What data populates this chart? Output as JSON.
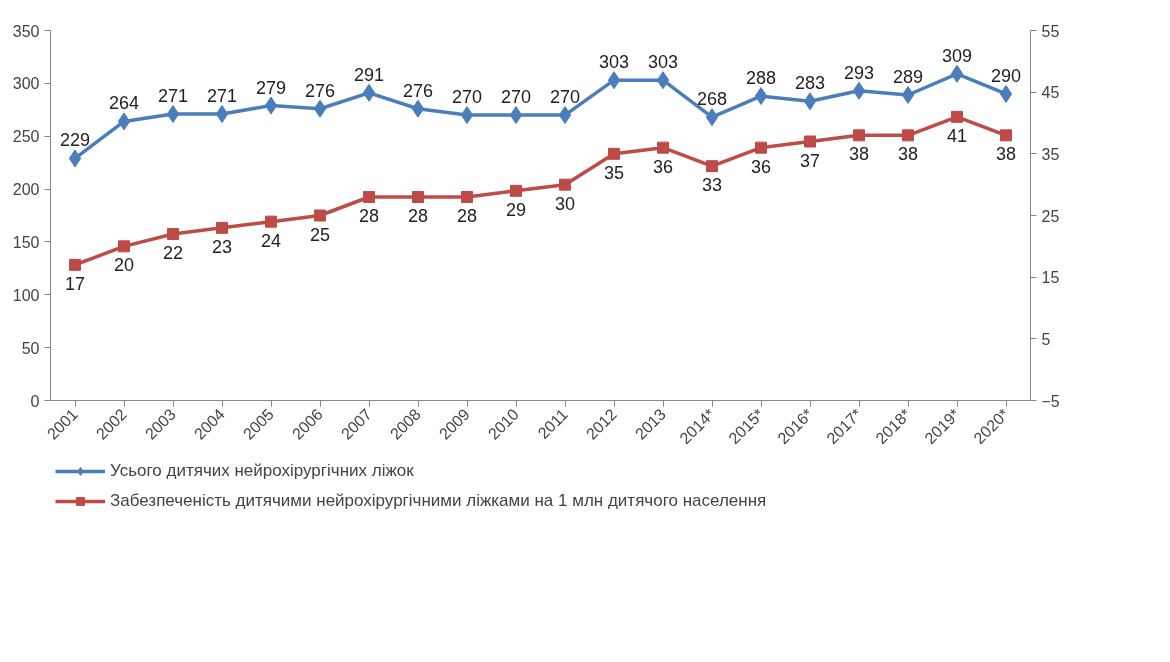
{
  "chart_data": {
    "type": "line",
    "categories": [
      "2001",
      "2002",
      "2003",
      "2004",
      "2005",
      "2006",
      "2007",
      "2008",
      "2009",
      "2010",
      "2011",
      "2012",
      "2013",
      "2014*",
      "2015*",
      "2016*",
      "2017*",
      "2018*",
      "2019*",
      "2020*"
    ],
    "series": [
      {
        "name": "Усього дитячих нейрохірургічних ліжок",
        "color": "#4a7ebb",
        "marker": "diamond",
        "values": [
          229,
          264,
          271,
          271,
          279,
          276,
          291,
          276,
          270,
          270,
          270,
          303,
          303,
          268,
          288,
          283,
          293,
          289,
          309,
          290
        ]
      },
      {
        "name": "Забезпеченість дитячими нейрохірургічними ліжками на 1 млн дитячого населення",
        "color": "#be4b48",
        "marker": "square",
        "axis": "y2",
        "values": [
          17,
          20,
          22,
          23,
          24,
          25,
          28,
          28,
          28,
          29,
          30,
          35,
          36,
          33,
          36,
          37,
          38,
          38,
          41,
          38
        ]
      }
    ],
    "ylim": [
      0,
      350
    ],
    "yticks": [
      0,
      50,
      100,
      150,
      200,
      250,
      300,
      350
    ],
    "y2lim": [
      -5,
      55
    ],
    "y2ticks": [
      -5,
      5,
      15,
      25,
      35,
      45,
      55
    ],
    "data_labels": true,
    "grid": false,
    "legend": "bottom",
    "line_style": "solid"
  }
}
